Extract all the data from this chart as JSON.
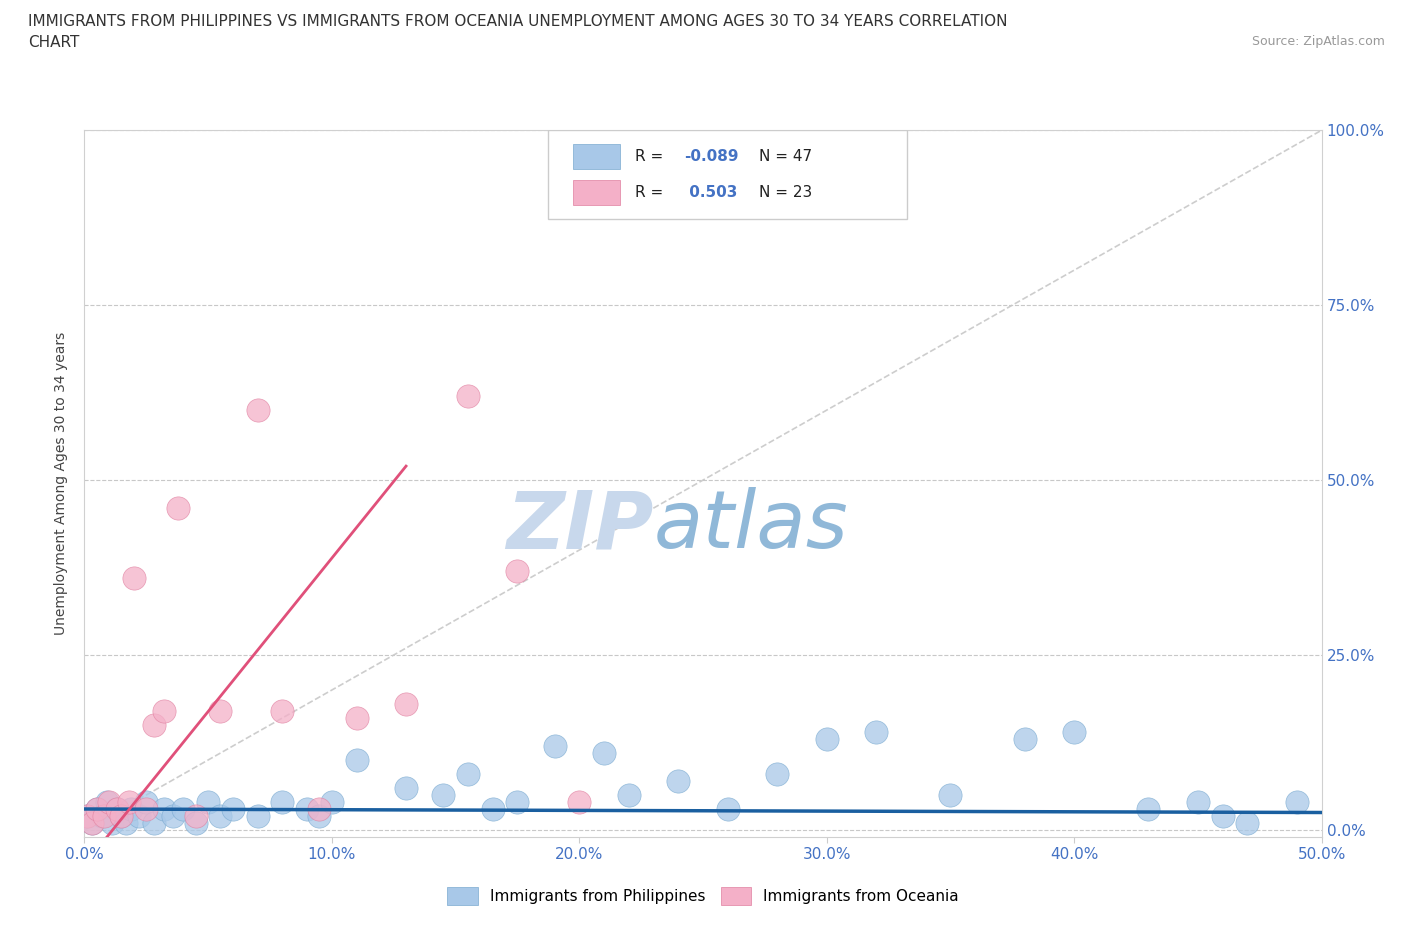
{
  "title_line1": "IMMIGRANTS FROM PHILIPPINES VS IMMIGRANTS FROM OCEANIA UNEMPLOYMENT AMONG AGES 30 TO 34 YEARS CORRELATION",
  "title_line2": "CHART",
  "source_text": "Source: ZipAtlas.com",
  "ylabel": "Unemployment Among Ages 30 to 34 years",
  "xlim": [
    0.0,
    0.5
  ],
  "ylim": [
    -0.01,
    1.0
  ],
  "xticks": [
    0.0,
    0.1,
    0.2,
    0.3,
    0.4,
    0.5
  ],
  "yticks": [
    0.0,
    0.25,
    0.5,
    0.75,
    1.0
  ],
  "xticklabels": [
    "0.0%",
    "10.0%",
    "20.0%",
    "30.0%",
    "40.0%",
    "50.0%"
  ],
  "yticklabels_right": [
    "100.0%",
    "75.0%",
    "50.0%",
    "25.0%",
    "0.0%"
  ],
  "philippines_color": "#a8c8e8",
  "oceania_color": "#f4b0c8",
  "philippines_edge_color": "#7aaad0",
  "oceania_edge_color": "#e080a0",
  "philippines_trend_color": "#1a5fa0",
  "oceania_trend_color": "#e0507a",
  "diagonal_color": "#b8b8b8",
  "watermark_color_zip": "#c0d4e8",
  "watermark_color_atlas": "#90b8d8",
  "legend_r_philippines": "-0.089",
  "legend_n_philippines": "47",
  "legend_r_oceania": "0.503",
  "legend_n_oceania": "23",
  "r_color": "#4472c4",
  "tick_label_color": "#4472c4",
  "philippines_x": [
    0.001,
    0.003,
    0.005,
    0.007,
    0.009,
    0.011,
    0.013,
    0.015,
    0.017,
    0.019,
    0.022,
    0.025,
    0.028,
    0.032,
    0.036,
    0.04,
    0.045,
    0.05,
    0.055,
    0.06,
    0.07,
    0.08,
    0.09,
    0.095,
    0.1,
    0.11,
    0.13,
    0.145,
    0.155,
    0.165,
    0.175,
    0.19,
    0.21,
    0.22,
    0.24,
    0.26,
    0.28,
    0.3,
    0.32,
    0.35,
    0.38,
    0.4,
    0.43,
    0.45,
    0.46,
    0.47,
    0.49
  ],
  "philippines_y": [
    0.02,
    0.01,
    0.03,
    0.02,
    0.04,
    0.01,
    0.03,
    0.02,
    0.01,
    0.03,
    0.02,
    0.04,
    0.01,
    0.03,
    0.02,
    0.03,
    0.01,
    0.04,
    0.02,
    0.03,
    0.02,
    0.04,
    0.03,
    0.02,
    0.04,
    0.1,
    0.06,
    0.05,
    0.08,
    0.03,
    0.04,
    0.12,
    0.11,
    0.05,
    0.07,
    0.03,
    0.08,
    0.13,
    0.14,
    0.05,
    0.13,
    0.14,
    0.03,
    0.04,
    0.02,
    0.01,
    0.04
  ],
  "oceania_x": [
    0.001,
    0.003,
    0.005,
    0.008,
    0.01,
    0.013,
    0.015,
    0.018,
    0.02,
    0.025,
    0.028,
    0.032,
    0.038,
    0.045,
    0.055,
    0.07,
    0.08,
    0.095,
    0.11,
    0.13,
    0.155,
    0.175,
    0.2
  ],
  "oceania_y": [
    0.02,
    0.01,
    0.03,
    0.02,
    0.04,
    0.03,
    0.02,
    0.04,
    0.36,
    0.03,
    0.15,
    0.17,
    0.46,
    0.02,
    0.17,
    0.6,
    0.17,
    0.03,
    0.16,
    0.18,
    0.62,
    0.37,
    0.04
  ]
}
